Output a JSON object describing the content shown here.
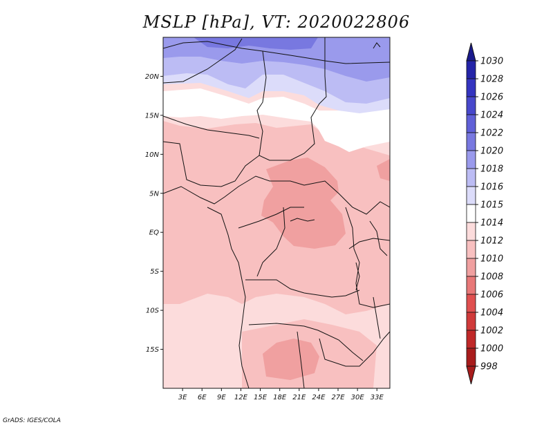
{
  "title": "MSLP [hPa], VT: 2020022806",
  "credit": "GrADS: IGES/COLA",
  "map": {
    "lon_range": [
      0,
      35
    ],
    "lat_range": [
      -20,
      25
    ],
    "lat_ticks": [
      {
        "value": 20,
        "label": "20N"
      },
      {
        "value": 15,
        "label": "15N"
      },
      {
        "value": 10,
        "label": "10N"
      },
      {
        "value": 5,
        "label": "5N"
      },
      {
        "value": 0,
        "label": "EQ"
      },
      {
        "value": -5,
        "label": "5S"
      },
      {
        "value": -10,
        "label": "10S"
      },
      {
        "value": -15,
        "label": "15S"
      }
    ],
    "lon_ticks": [
      {
        "value": 3,
        "label": "3E"
      },
      {
        "value": 6,
        "label": "6E"
      },
      {
        "value": 9,
        "label": "9E"
      },
      {
        "value": 12,
        "label": "12E"
      },
      {
        "value": 15,
        "label": "15E"
      },
      {
        "value": 18,
        "label": "18E"
      },
      {
        "value": 21,
        "label": "21E"
      },
      {
        "value": 24,
        "label": "24E"
      },
      {
        "value": 27,
        "label": "27E"
      },
      {
        "value": 30,
        "label": "30E"
      },
      {
        "value": 33,
        "label": "33E"
      }
    ]
  },
  "colorbar": {
    "levels": [
      {
        "label": "1030",
        "color": "#1a1a8c"
      },
      {
        "label": "1028",
        "color": "#2424a8"
      },
      {
        "label": "1026",
        "color": "#3434c0"
      },
      {
        "label": "1024",
        "color": "#4848cc"
      },
      {
        "label": "1022",
        "color": "#6060d8"
      },
      {
        "label": "1020",
        "color": "#7878e0"
      },
      {
        "label": "1018",
        "color": "#9a9aec"
      },
      {
        "label": "1016",
        "color": "#bcbcf4"
      },
      {
        "label": "1015",
        "color": "#dcdcfa"
      },
      {
        "label": "1014",
        "color": "#ffffff"
      },
      {
        "label": "1012",
        "color": "#fcdcdc"
      },
      {
        "label": "1010",
        "color": "#f8c0c0"
      },
      {
        "label": "1008",
        "color": "#f0a0a0"
      },
      {
        "label": "1006",
        "color": "#e87878"
      },
      {
        "label": "1004",
        "color": "#e05050"
      },
      {
        "label": "1002",
        "color": "#d03a3a"
      },
      {
        "label": "1000",
        "color": "#c02828"
      },
      {
        "label": "998",
        "color": "#a81c1c"
      }
    ],
    "top_arrow_color": "#1a1a8c",
    "bottom_arrow_color": "#a81c1c"
  }
}
